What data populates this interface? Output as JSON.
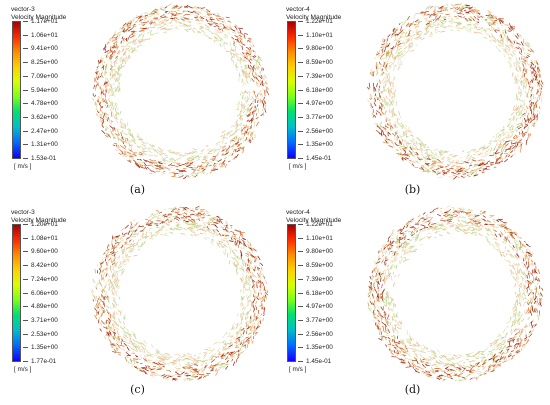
{
  "panels": [
    {
      "caption": "(a)",
      "legend": {
        "name": "vector-3",
        "quantity": "Velocity Magnitude",
        "unit": "[ m/s ]",
        "ticks": [
          "1.17e+01",
          "1.06e+01",
          "9.41e+00",
          "8.25e+00",
          "7.09e+00",
          "5.94e+00",
          "4.78e+00",
          "3.62e+00",
          "2.47e+00",
          "1.31e+00",
          "1.53e-01"
        ]
      }
    },
    {
      "caption": "(b)",
      "legend": {
        "name": "vector-4",
        "quantity": "Velocity Magnitude",
        "unit": "[ m/s ]",
        "ticks": [
          "1.22e+01",
          "1.10e+01",
          "9.80e+00",
          "8.59e+00",
          "7.39e+00",
          "6.18e+00",
          "4.97e+00",
          "3.77e+00",
          "2.56e+00",
          "1.35e+00",
          "1.45e-01"
        ]
      }
    },
    {
      "caption": "(c)",
      "legend": {
        "name": "vector-3",
        "quantity": "Velocity Magnitude",
        "unit": "[ m/s ]",
        "ticks": [
          "1.20e+01",
          "1.08e+01",
          "9.60e+00",
          "8.42e+00",
          "7.24e+00",
          "6.06e+00",
          "4.89e+00",
          "3.71e+00",
          "2.53e+00",
          "1.35e+00",
          "1.77e-01"
        ]
      }
    },
    {
      "caption": "(d)",
      "legend": {
        "name": "vector-4",
        "quantity": "Velocity Magnitude",
        "unit": "[ m/s ]",
        "ticks": [
          "1.22e+01",
          "1.10e+01",
          "9.80e+00",
          "8.59e+00",
          "7.39e+00",
          "6.18e+00",
          "4.97e+00",
          "3.77e+00",
          "2.56e+00",
          "1.35e+00",
          "1.45e-01"
        ]
      }
    }
  ]
}
